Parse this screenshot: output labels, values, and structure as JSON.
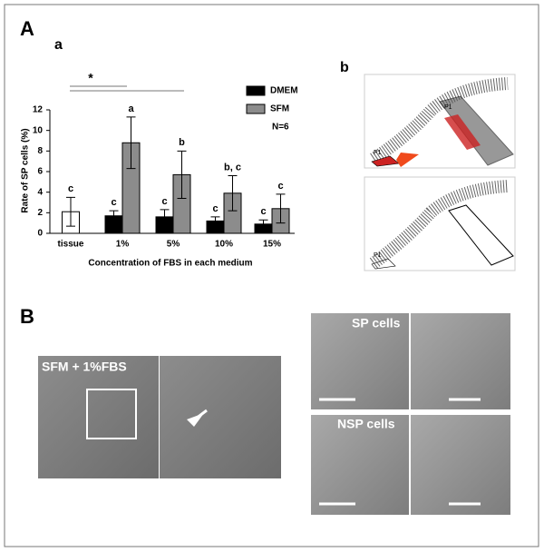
{
  "labels": [
    "A",
    "a",
    "b",
    "B"
  ],
  "image_labels": [
    "SFM + 1%FBS",
    "SP cells",
    "NSP cells"
  ],
  "gate_labels": [
    "P1",
    "P1",
    "P1"
  ],
  "chart_data": {
    "type": "bar",
    "categories": [
      "tissue",
      "1%",
      "5%",
      "10%",
      "15%"
    ],
    "series": [
      {
        "color": "#ffffff",
        "values": [
          2.1,
          null,
          null,
          null,
          null
        ],
        "errors": [
          1.4,
          null,
          null,
          null,
          null
        ],
        "labels": [
          "c",
          null,
          null,
          null,
          null
        ]
      },
      {
        "name": "DMEM",
        "color": "#000000",
        "values": [
          null,
          1.7,
          1.6,
          1.2,
          0.9
        ],
        "errors": [
          null,
          0.5,
          0.7,
          0.4,
          0.4
        ],
        "labels": [
          null,
          "c",
          "c",
          "c",
          "c"
        ]
      },
      {
        "name": "SFM",
        "color": "#8c8c8c",
        "values": [
          null,
          8.8,
          5.7,
          3.9,
          2.4
        ],
        "errors": [
          null,
          2.5,
          2.3,
          1.7,
          1.4
        ],
        "labels": [
          null,
          "a",
          "b",
          "b, c",
          "c"
        ]
      }
    ],
    "ylim": [
      0,
      12
    ],
    "yticks": [
      0,
      2,
      4,
      6,
      8,
      10,
      12
    ],
    "ylabel": "Rate of SP cells (%)",
    "xlabel": "Concentration of FBS in each medium",
    "annotations": [
      "N=6",
      "*"
    ]
  }
}
